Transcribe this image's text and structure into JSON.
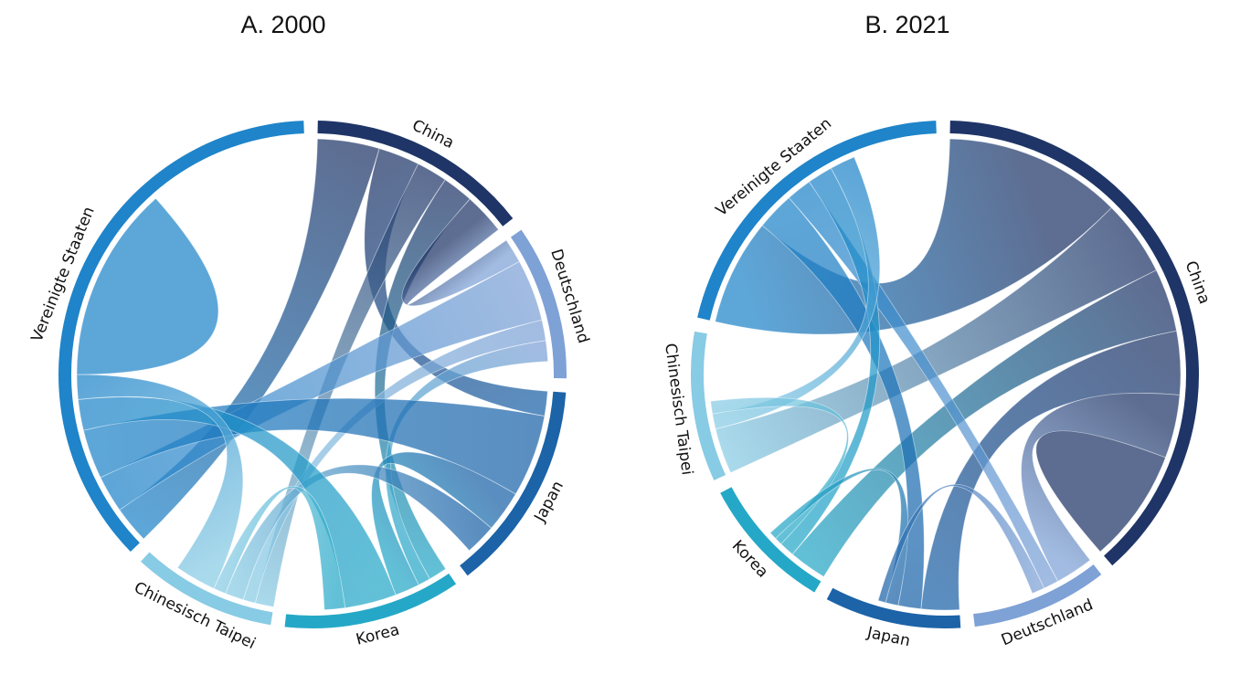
{
  "chart_data": [
    {
      "type": "chord",
      "title": "A. 2000",
      "segments": [
        {
          "name": "China",
          "value": 10,
          "color": "#1f3567"
        },
        {
          "name": "Deutschland",
          "value": 7,
          "color": "#7ea1d6"
        },
        {
          "name": "Japan",
          "value": 9.5,
          "color": "#1c63a8"
        },
        {
          "name": "Korea",
          "value": 8,
          "color": "#25a8c7"
        },
        {
          "name": "Chinesisch Taipei",
          "value": 6.5,
          "color": "#88cbe4"
        },
        {
          "name": "Vereinigte Staaten",
          "value": 26,
          "color": "#1f84c9"
        }
      ],
      "flows": [
        {
          "from": "China",
          "to": "Vereinigte Staaten",
          "value": 3
        },
        {
          "from": "China",
          "to": "Japan",
          "value": 2
        },
        {
          "from": "China",
          "to": "Chinesisch Taipei",
          "value": 1.5
        },
        {
          "from": "China",
          "to": "Korea",
          "value": 1.5
        },
        {
          "from": "China",
          "to": "Deutschland",
          "value": 2
        },
        {
          "from": "Deutschland",
          "to": "Vereinigte Staaten",
          "value": 3
        },
        {
          "from": "Deutschland",
          "to": "Chinesisch Taipei",
          "value": 1
        },
        {
          "from": "Deutschland",
          "to": "Korea",
          "value": 1
        },
        {
          "from": "Japan",
          "to": "Vereinigte Staaten",
          "value": 4
        },
        {
          "from": "Japan",
          "to": "Korea",
          "value": 2
        },
        {
          "from": "Japan",
          "to": "Chinesisch Taipei",
          "value": 1.5
        },
        {
          "from": "Korea",
          "to": "Vereinigte Staaten",
          "value": 2.5
        },
        {
          "from": "Korea",
          "to": "Chinesisch Taipei",
          "value": 1
        },
        {
          "from": "Chinesisch Taipei",
          "to": "Vereinigte Staaten",
          "value": 2
        },
        {
          "from": "Vereinigte Staaten",
          "to": "Vereinigte Staaten",
          "value": 9.5
        }
      ]
    },
    {
      "type": "chord",
      "title": "B. 2021",
      "segments": [
        {
          "name": "China",
          "value": 22,
          "color": "#1f3567"
        },
        {
          "name": "Deutschland",
          "value": 5,
          "color": "#7ea1d6"
        },
        {
          "name": "Japan",
          "value": 5,
          "color": "#1c63a8"
        },
        {
          "name": "Korea",
          "value": 5,
          "color": "#25a8c7"
        },
        {
          "name": "Chinesisch Taipei",
          "value": 5.5,
          "color": "#88cbe4"
        },
        {
          "name": "Vereinigte Staaten",
          "value": 12,
          "color": "#1f84c9"
        }
      ],
      "flows": [
        {
          "from": "China",
          "to": "Vereinigte Staaten",
          "value": 7
        },
        {
          "from": "China",
          "to": "Chinesisch Taipei",
          "value": 3
        },
        {
          "from": "China",
          "to": "Korea",
          "value": 2.5
        },
        {
          "from": "China",
          "to": "Japan",
          "value": 2.5
        },
        {
          "from": "China",
          "to": "Deutschland",
          "value": 2.5
        },
        {
          "from": "China",
          "to": "China",
          "value": 4.5
        },
        {
          "from": "Vereinigte Staaten",
          "to": "Japan",
          "value": 1.5
        },
        {
          "from": "Vereinigte Staaten",
          "to": "Deutschland",
          "value": 1
        },
        {
          "from": "Vereinigte Staaten",
          "to": "Korea",
          "value": 1
        },
        {
          "from": "Vereinigte Staaten",
          "to": "Chinesisch Taipei",
          "value": 1
        },
        {
          "from": "Chinesisch Taipei",
          "to": "Korea",
          "value": 0.5
        },
        {
          "from": "Japan",
          "to": "Korea",
          "value": 0.5
        },
        {
          "from": "Deutschland",
          "to": "Japan",
          "value": 0.5
        }
      ]
    }
  ]
}
